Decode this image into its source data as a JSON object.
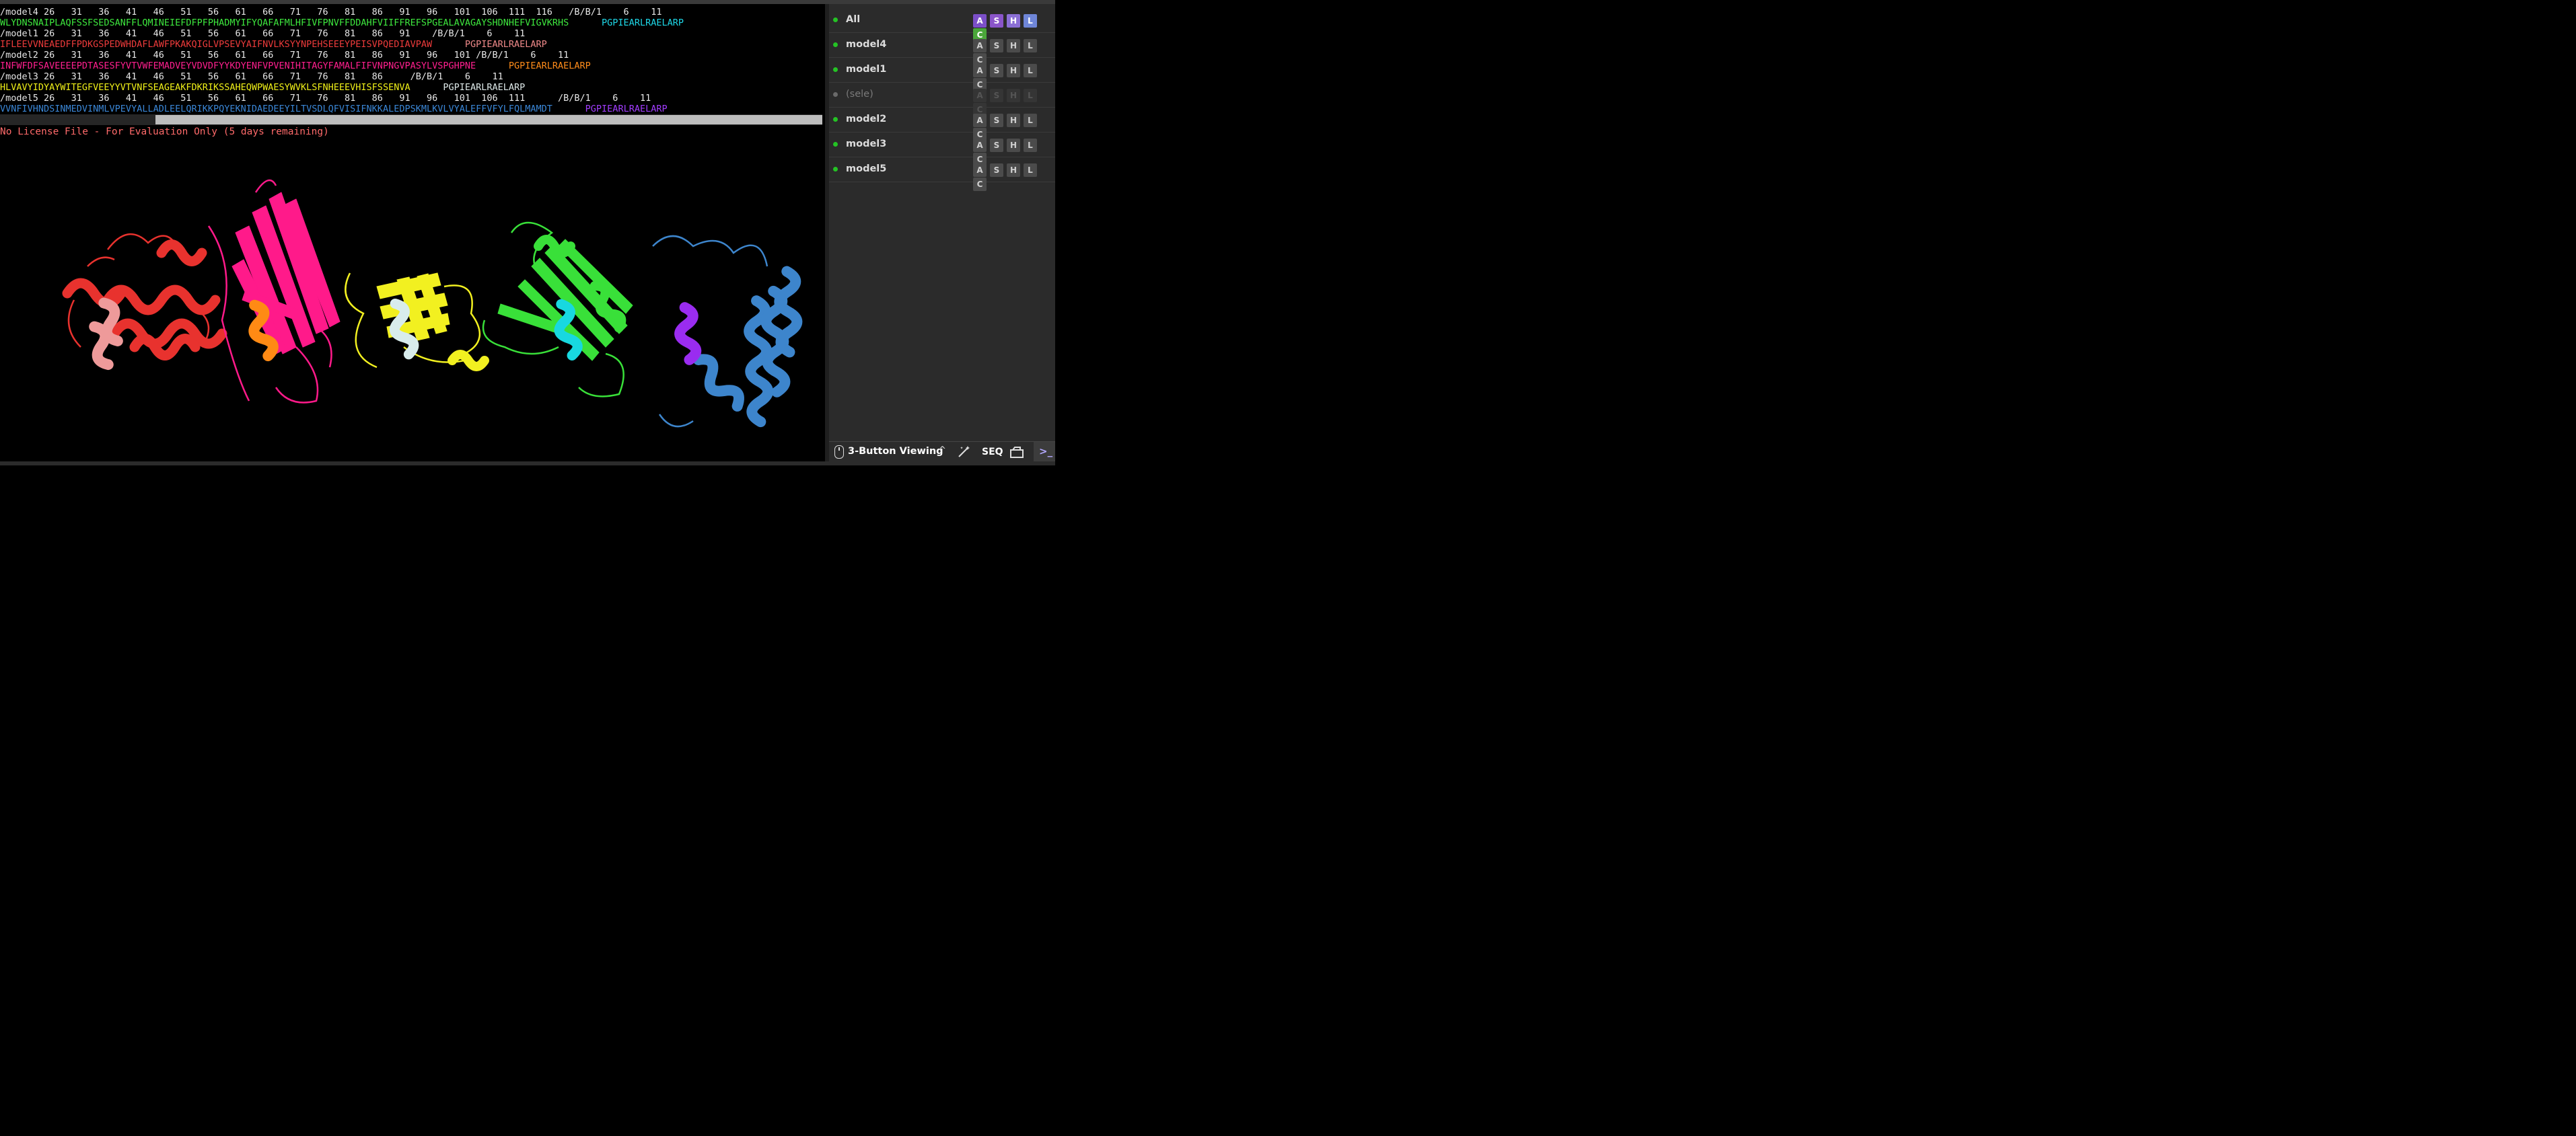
{
  "sequence": {
    "lines": [
      {
        "type": "header",
        "text": "/model4 26   31   36   41   46   51   56   61   66   71   76   81   86   91   96   101  106  111  116   /B/B/1    6    11"
      },
      {
        "type": "seq",
        "parts": [
          {
            "text": "WLYDNSNAIPLAQFSSFSEDSANFFLQMINEIEFDFPFPHADMYIFYQAFAFMLHFIVFPNVFFDDAHFVIIFFREFSPGEALAVAGAYSHDNHEFVIGVKRHS      ",
            "color": "#3ee83e"
          },
          {
            "text": "PGPIEARLRAELARP",
            "color": "#1ed8e8"
          }
        ]
      },
      {
        "type": "header",
        "text": "/model1 26   31   36   41   46   51   56   61   66   71   76   81   86   91    /B/B/1    6    11"
      },
      {
        "type": "seq",
        "parts": [
          {
            "text": "IFLEEVVNEAEDFFPDKGSPEDWHDAFLAWFPKAKQIGLVPSEVYAIFNVLKSYYNPEHSEEEYPEISVPQEDIAVPAW      ",
            "color": "#ee3b3b"
          },
          {
            "text": "PGPIEARLRAELARP",
            "color": "#f08a8a"
          }
        ]
      },
      {
        "type": "header",
        "text": "/model2 26   31   36   41   46   51   56   61   66   71   76   81   86   91   96   101 /B/B/1    6    11"
      },
      {
        "type": "seq",
        "parts": [
          {
            "text": "INFWFDFSAVEEEEPDTASESFYVTVWFEMADVEYVDVDFYYKDYENFVPVENIHITAGYFAMALFIFVNPNGVPASYLVSPGHPNE      ",
            "color": "#ff1f8e"
          },
          {
            "text": "PGPIEARLRAELARP",
            "color": "#ff8c1a"
          }
        ]
      },
      {
        "type": "header",
        "text": "/model3 26   31   36   41   46   51   56   61   66   71   76   81   86     /B/B/1    6    11"
      },
      {
        "type": "seq",
        "parts": [
          {
            "text": "HLVAVYIDYAYWITEGFVEEYYVTVNFSEAGEAKFDKRIKSSAHEQWPWAESYWVKLSFNHEEEVHISFSSENVA      ",
            "color": "#f0f018"
          },
          {
            "text": "PGPIEARLRAELARP",
            "color": "#dde8e8"
          }
        ]
      },
      {
        "type": "header",
        "text": "/model5 26   31   36   41   46   51   56   61   66   71   76   81   86   91   96   101  106  111      /B/B/1    6    11"
      },
      {
        "type": "seq",
        "parts": [
          {
            "text": "VVNFIVHNDSINMEDVINMLVPEVYALLADLEELQRIKKPQYEKNIDAEDEEYILTVSDLQFVISIFNKKALEDPSKMLKVLVYALEFFVFYLFQLMAMDT      ",
            "color": "#3a86d6"
          },
          {
            "text": "PGPIEARLRAELARP",
            "color": "#a23cff"
          }
        ]
      }
    ]
  },
  "license_text": "No License File - For Evaluation Only (5 days remaining)",
  "objects": [
    {
      "name": "All",
      "enabled": true,
      "highlight": true
    },
    {
      "name": "model4",
      "enabled": true,
      "highlight": false
    },
    {
      "name": "model1",
      "enabled": true,
      "highlight": false
    },
    {
      "name": "(sele)",
      "enabled": false,
      "highlight": false
    },
    {
      "name": "model2",
      "enabled": true,
      "highlight": false
    },
    {
      "name": "model3",
      "enabled": true,
      "highlight": false
    },
    {
      "name": "model5",
      "enabled": true,
      "highlight": false
    }
  ],
  "action_buttons": [
    "A",
    "S",
    "H",
    "L",
    "C"
  ],
  "bottom_bar": {
    "mouse_mode": "3-Button Viewing",
    "seq_label": "SEQ",
    "terminal_glyph": ">_"
  },
  "structure_colors": {
    "model1": "#e8322e",
    "model1_peptide": "#ee9a9a",
    "model2": "#ff1a8a",
    "model2_peptide": "#ff8a14",
    "model3": "#f2f020",
    "model3_peptide": "#d8ecec",
    "model4": "#39e039",
    "model4_peptide": "#18d8e0",
    "model5": "#3d85cc",
    "model5_peptide": "#9a2cf0"
  }
}
